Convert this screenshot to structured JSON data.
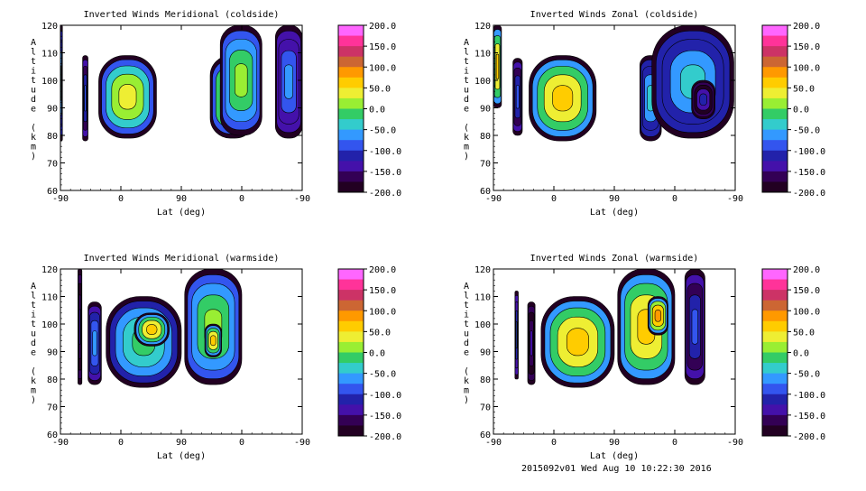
{
  "footer_text": "2015092v01 Wed Aug 10 10:22:30 2016",
  "colorbar": {
    "ticks": [
      "200.0",
      "150.0",
      "100.0",
      "50.0",
      "0.0",
      "-50.0",
      "-100.0",
      "-150.0",
      "-200.0"
    ],
    "values": [
      200,
      150,
      100,
      50,
      0,
      -50,
      -100,
      -150,
      -200
    ],
    "colors": [
      "#ff66ff",
      "#ff3399",
      "#cc3366",
      "#cc6633",
      "#ff9900",
      "#ffcc00",
      "#eeee33",
      "#99ee33",
      "#33cc66",
      "#33cccc",
      "#3399ff",
      "#3355ee",
      "#2222aa",
      "#4411aa",
      "#330055",
      "#220022"
    ]
  },
  "chart_data": [
    {
      "type": "heatmap",
      "title": "Inverted Winds Meridional (coldside)",
      "xlabel": "Lat (deg)",
      "ylabel": "Altitude (km)",
      "x_ticks": [
        "-90",
        "0",
        "90",
        "0",
        "-90"
      ],
      "y_ticks": [
        "60",
        "70",
        "80",
        "90",
        "100",
        "110",
        "120"
      ],
      "ylim": [
        60,
        120
      ],
      "value_range": [
        -200,
        200
      ],
      "blobs": [
        {
          "x": [
            -92,
            -87
          ],
          "y": [
            78,
            120
          ],
          "v": -60
        },
        {
          "x": [
            -57,
            -49
          ],
          "y": [
            78,
            109
          ],
          "v": -120
        },
        {
          "x": [
            -33,
            53
          ],
          "y": [
            79,
            109
          ],
          "v": 10
        },
        {
          "x": [
            133,
            200
          ],
          "y": [
            79,
            109
          ],
          "v": 20
        },
        {
          "x": [
            148,
            210
          ],
          "y": [
            80,
            120
          ],
          "v": -20
        },
        {
          "x": [
            230,
            270
          ],
          "y": [
            79,
            120
          ],
          "v": -90
        }
      ]
    },
    {
      "type": "heatmap",
      "title": "Inverted Winds Zonal (coldside)",
      "xlabel": "Lat (deg)",
      "ylabel": "Altitude (km)",
      "x_ticks": [
        "-90",
        "0",
        "90",
        "0",
        "-90"
      ],
      "y_ticks": [
        "60",
        "70",
        "80",
        "90",
        "100",
        "110",
        "120"
      ],
      "ylim": [
        60,
        120
      ],
      "value_range": [
        -200,
        200
      ],
      "blobs": [
        {
          "x": [
            -90,
            -78
          ],
          "y": [
            90,
            120
          ],
          "v": 30
        },
        {
          "x": [
            -61,
            -47
          ],
          "y": [
            80,
            108
          ],
          "v": -110
        },
        {
          "x": [
            -37,
            63
          ],
          "y": [
            78,
            109
          ],
          "v": 40
        },
        {
          "x": [
            128,
            160
          ],
          "y": [
            78,
            109
          ],
          "v": -60
        },
        {
          "x": [
            146,
            268
          ],
          "y": [
            79,
            120
          ],
          "v": -70
        },
        {
          "x": [
            205,
            240
          ],
          "y": [
            86,
            100
          ],
          "v": -140
        }
      ]
    },
    {
      "type": "heatmap",
      "title": "Inverted Winds Meridional (warmside)",
      "xlabel": "Lat (deg)",
      "ylabel": "Altitude (km)",
      "x_ticks": [
        "-90",
        "0",
        "90",
        "0",
        "-90"
      ],
      "y_ticks": [
        "60",
        "70",
        "80",
        "90",
        "100",
        "110",
        "120"
      ],
      "ylim": [
        60,
        120
      ],
      "value_range": [
        -200,
        200
      ],
      "blobs": [
        {
          "x": [
            -64,
            -58
          ],
          "y": [
            78,
            120
          ],
          "v": -150
        },
        {
          "x": [
            -49,
            -29
          ],
          "y": [
            78,
            108
          ],
          "v": -80
        },
        {
          "x": [
            -22,
            90
          ],
          "y": [
            77,
            110
          ],
          "v": -30
        },
        {
          "x": [
            20,
            72
          ],
          "y": [
            92,
            104
          ],
          "v": 40
        },
        {
          "x": [
            95,
            180
          ],
          "y": [
            78,
            120
          ],
          "v": -10
        },
        {
          "x": [
            125,
            150
          ],
          "y": [
            88,
            100
          ],
          "v": 30
        }
      ]
    },
    {
      "type": "heatmap",
      "title": "Inverted Winds Zonal (warmside)",
      "xlabel": "Lat (deg)",
      "ylabel": "Altitude (km)",
      "x_ticks": [
        "-90",
        "0",
        "90",
        "0",
        "-90"
      ],
      "y_ticks": [
        "60",
        "70",
        "80",
        "90",
        "100",
        "110",
        "120"
      ],
      "ylim": [
        60,
        120
      ],
      "value_range": [
        -200,
        200
      ],
      "blobs": [
        {
          "x": [
            -58,
            -53
          ],
          "y": [
            80,
            112
          ],
          "v": -100
        },
        {
          "x": [
            -39,
            -28
          ],
          "y": [
            78,
            108
          ],
          "v": -160
        },
        {
          "x": [
            -19,
            90
          ],
          "y": [
            77,
            110
          ],
          "v": 40
        },
        {
          "x": [
            95,
            180
          ],
          "y": [
            78,
            120
          ],
          "v": 30
        },
        {
          "x": [
            140,
            170
          ],
          "y": [
            96,
            110
          ],
          "v": 60
        },
        {
          "x": [
            195,
            225
          ],
          "y": [
            78,
            120
          ],
          "v": -120
        }
      ]
    }
  ]
}
